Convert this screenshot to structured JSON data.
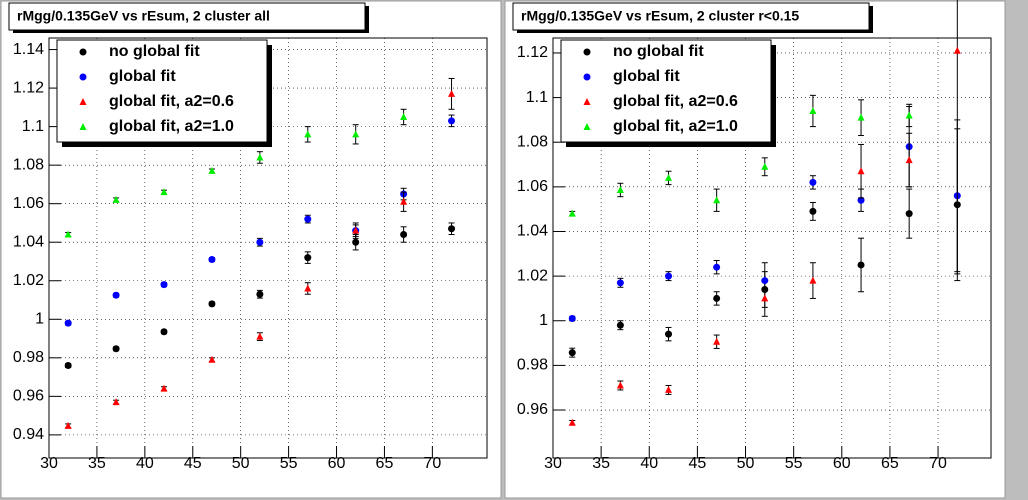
{
  "chart_data": [
    {
      "type": "scatter",
      "title": "rMgg/0.135GeV vs rEsum, 2 cluster all",
      "x": [
        32,
        37,
        42,
        47,
        52,
        57,
        62,
        67,
        72
      ],
      "xlim": [
        30,
        75.7
      ],
      "xticks": [
        30,
        35,
        40,
        45,
        50,
        55,
        60,
        65,
        70
      ],
      "ylim": [
        0.928,
        1.146
      ],
      "yticks": [
        0.94,
        0.96,
        0.98,
        1,
        1.02,
        1.04,
        1.06,
        1.08,
        1.1,
        1.12,
        1.14
      ],
      "grid": true,
      "legend": "top-left",
      "series": [
        {
          "name": "no global fit",
          "color": "#000000",
          "marker": "circle",
          "values": [
            0.976,
            0.9847,
            0.9935,
            1.008,
            1.013,
            1.032,
            1.04,
            1.044,
            1.047
          ],
          "errors": [
            0.001,
            0.001,
            0.001,
            0.001,
            0.002,
            0.003,
            0.004,
            0.004,
            0.003
          ]
        },
        {
          "name": "global fit",
          "color": "#0000ff",
          "marker": "circle",
          "values": [
            0.998,
            1.0125,
            1.018,
            1.031,
            1.04,
            1.052,
            1.046,
            1.065,
            1.103
          ],
          "errors": [
            0.001,
            0.001,
            0.001,
            0.001,
            0.002,
            0.002,
            0.003,
            0.003,
            0.003
          ]
        },
        {
          "name": "global fit, a2=0.6",
          "color": "#ff0000",
          "marker": "triangle",
          "values": [
            0.9447,
            0.957,
            0.964,
            0.979,
            0.991,
            1.016,
            1.046,
            1.061,
            1.117
          ],
          "errors": [
            0.001,
            0.001,
            0.001,
            0.001,
            0.002,
            0.003,
            0.004,
            0.005,
            0.008
          ]
        },
        {
          "name": "global fit, a2=1.0",
          "color": "#00ee00",
          "marker": "triangle",
          "values": [
            1.044,
            1.062,
            1.066,
            1.077,
            1.084,
            1.096,
            1.096,
            1.105,
            null
          ],
          "errors": [
            0.001,
            0.001,
            0.001,
            0.001,
            0.003,
            0.004,
            0.005,
            0.004,
            null
          ]
        }
      ]
    },
    {
      "type": "scatter",
      "title": "rMgg/0.135GeV vs rEsum, 2 cluster r<0.15",
      "x": [
        32,
        37,
        42,
        47,
        52,
        57,
        62,
        67,
        72
      ],
      "xlim": [
        30,
        75.5
      ],
      "xticks": [
        30,
        35,
        40,
        45,
        50,
        55,
        60,
        65,
        70
      ],
      "ylim": [
        0.9385,
        1.1267
      ],
      "yticks": [
        0.96,
        0.98,
        1,
        1.02,
        1.04,
        1.06,
        1.08,
        1.1,
        1.12
      ],
      "grid": true,
      "legend": "top-left",
      "series": [
        {
          "name": "no global fit",
          "color": "#000000",
          "marker": "circle",
          "values": [
            0.9857,
            0.998,
            0.994,
            1.01,
            1.014,
            1.049,
            1.025,
            1.048,
            1.052
          ],
          "errors": [
            0.002,
            0.002,
            0.003,
            0.003,
            0.012,
            0.004,
            0.012,
            0.011,
            0.034
          ]
        },
        {
          "name": "global fit",
          "color": "#0000ff",
          "marker": "circle",
          "values": [
            1.001,
            1.017,
            1.02,
            1.024,
            1.018,
            1.062,
            1.054,
            1.078,
            1.056
          ],
          "errors": [
            0.001,
            0.002,
            0.002,
            0.003,
            0.004,
            0.003,
            0.005,
            0.018,
            0.034
          ]
        },
        {
          "name": "global fit, a2=0.6",
          "color": "#ff0000",
          "marker": "triangle",
          "values": [
            0.9543,
            0.971,
            0.969,
            0.9906,
            1.01,
            1.018,
            1.067,
            1.072,
            1.121
          ],
          "errors": [
            0.001,
            0.002,
            0.002,
            0.003,
            0.004,
            0.008,
            0.012,
            0.012,
            0.1
          ]
        },
        {
          "name": "global fit, a2=1.0",
          "color": "#00ee00",
          "marker": "triangle",
          "values": [
            1.048,
            1.0586,
            1.064,
            1.054,
            1.069,
            1.094,
            1.091,
            1.092,
            null
          ],
          "errors": [
            0.001,
            0.003,
            0.003,
            0.005,
            0.004,
            0.007,
            0.008,
            0.005,
            null
          ]
        }
      ]
    }
  ]
}
